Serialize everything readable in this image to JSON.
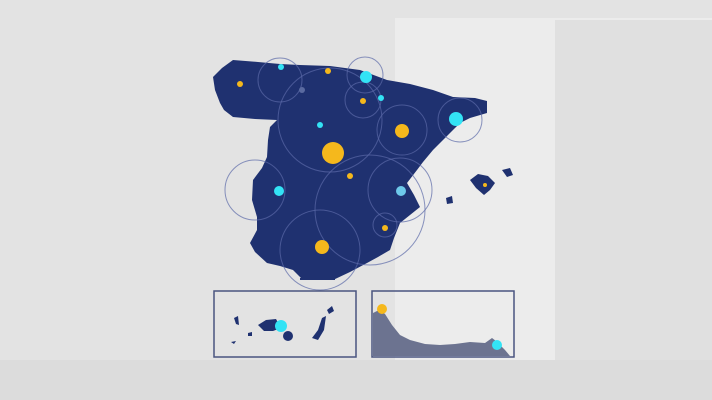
{
  "colors": {
    "background": "#e3e3e3",
    "land": "#1f3170",
    "ring": "#5b6aa8",
    "marker_yellow": "#f5b81c",
    "marker_cyan": "#33e3f5",
    "inset_border": "#4a5580",
    "coast_fill": "#6c7390"
  },
  "markers_legend": {
    "yellow": "marker_yellow",
    "cyan": "marker_cyan"
  }
}
